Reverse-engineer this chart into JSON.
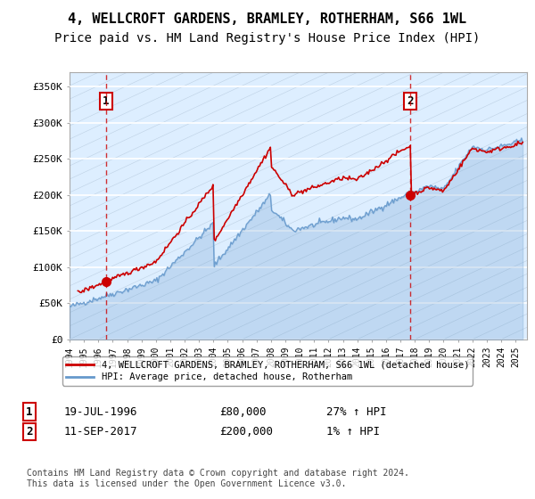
{
  "title": "4, WELLCROFT GARDENS, BRAMLEY, ROTHERHAM, S66 1WL",
  "subtitle": "Price paid vs. HM Land Registry's House Price Index (HPI)",
  "ylim": [
    0,
    370000
  ],
  "yticks": [
    0,
    50000,
    100000,
    150000,
    200000,
    250000,
    300000,
    350000
  ],
  "ytick_labels": [
    "£0",
    "£50K",
    "£100K",
    "£150K",
    "£200K",
    "£250K",
    "£300K",
    "£350K"
  ],
  "bg_color": "#ddeeff",
  "grid_color": "#ffffff",
  "red_line_color": "#cc0000",
  "blue_line_color": "#6699cc",
  "point1_x": 1996.54,
  "point1_value": 80000,
  "point2_x": 2017.7,
  "point2_value": 200000,
  "legend_red": "4, WELLCROFT GARDENS, BRAMLEY, ROTHERHAM, S66 1WL (detached house)",
  "legend_blue": "HPI: Average price, detached house, Rotherham",
  "annotation1_date": "19-JUL-1996",
  "annotation1_price": "£80,000",
  "annotation1_hpi": "27% ↑ HPI",
  "annotation2_date": "11-SEP-2017",
  "annotation2_price": "£200,000",
  "annotation2_hpi": "1% ↑ HPI",
  "footer": "Contains HM Land Registry data © Crown copyright and database right 2024.\nThis data is licensed under the Open Government Licence v3.0.",
  "title_fontsize": 11,
  "subtitle_fontsize": 10,
  "xmin": 1994,
  "xmax": 2025.8
}
